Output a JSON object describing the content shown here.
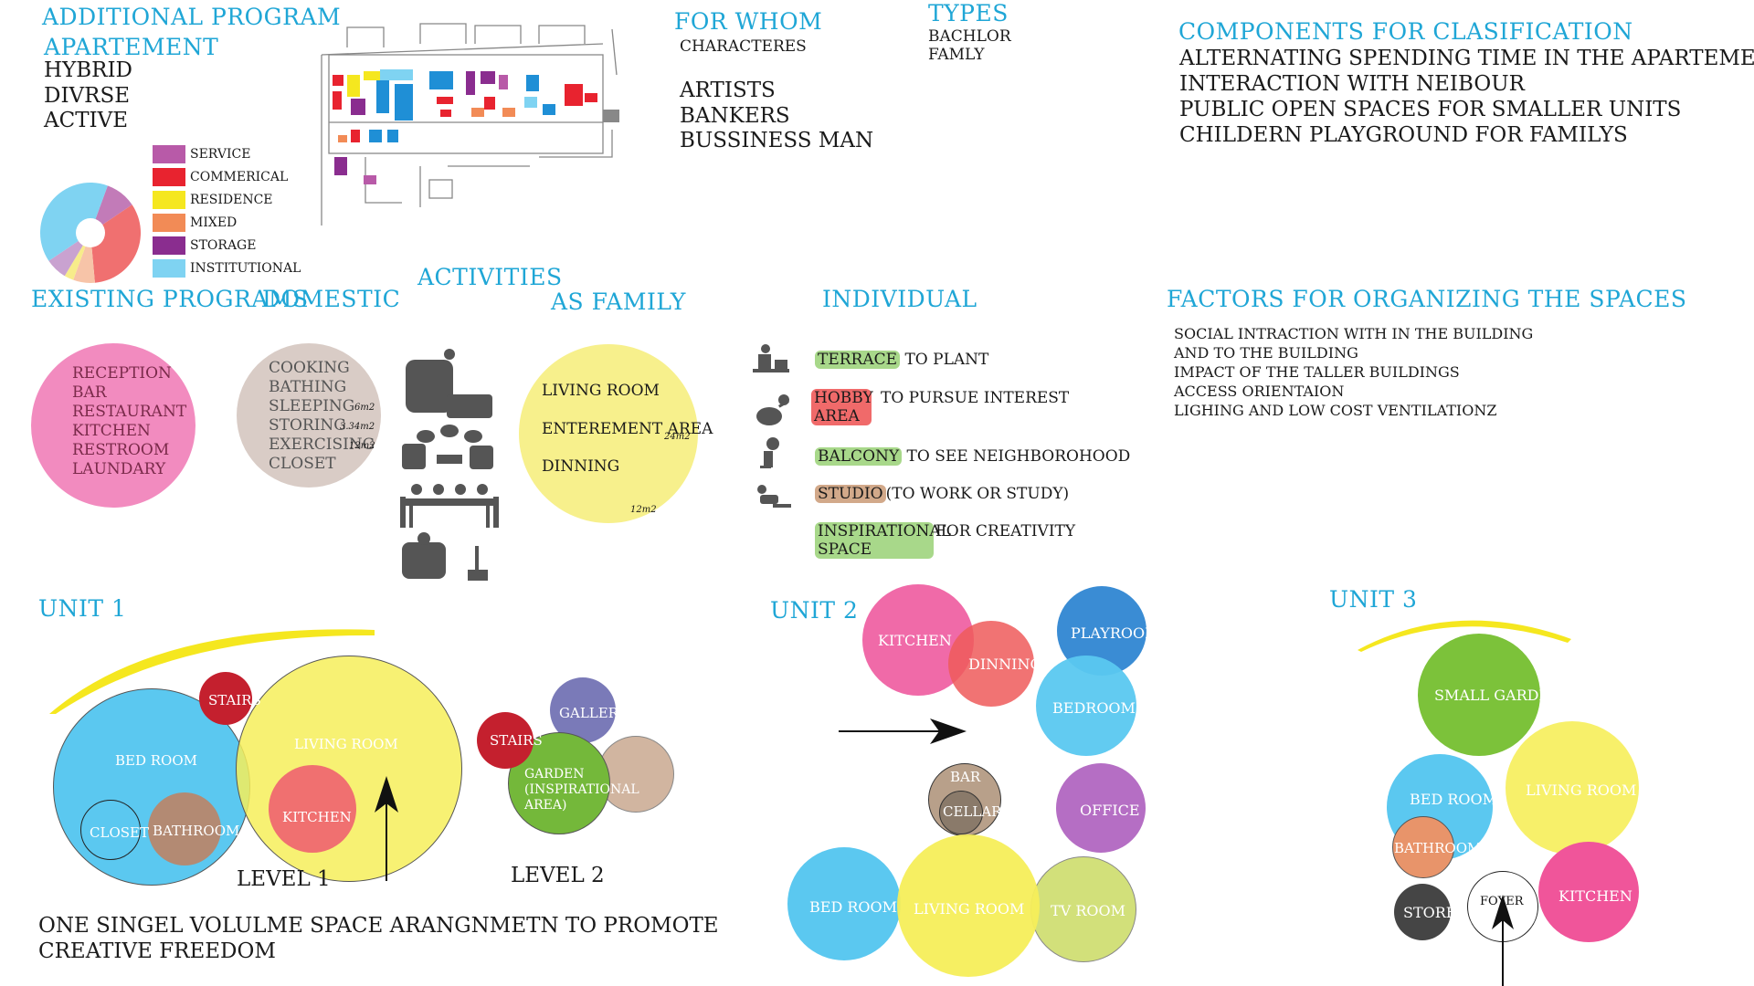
{
  "header": {
    "additional_program": "ADDITIONAL PROGRAM",
    "apartement": "APARTEMENT",
    "apt_items": [
      "HYBRID",
      "DIVRSE",
      "ACTIVE"
    ],
    "for_whom": "FOR WHOM",
    "characteres": "CHARACTERES",
    "characters": [
      "ARTISTS",
      "BANKERS",
      "BUSSINESS MAN"
    ],
    "types": "TYPES",
    "type_items": [
      "BACHLOR",
      "FAMLY"
    ],
    "components_title": "COMPONENTS FOR CLASIFICATION",
    "components": [
      "ALTERNATING SPENDING TIME IN THE APARTEMENT",
      "INTERACTION WITH NEIBOUR",
      "PUBLIC OPEN SPACES FOR SMALLER UNITS",
      "CHILDERN PLAYGROUND FOR FAMILYS"
    ]
  },
  "legend": [
    {
      "label": "SERVICE",
      "color": "#b85aa8"
    },
    {
      "label": "COMMERICAL",
      "color": "#e8232f"
    },
    {
      "label": "RESIDENCE",
      "color": "#f5e71f"
    },
    {
      "label": "MIXED",
      "color": "#f28b56"
    },
    {
      "label": "STORAGE",
      "color": "#8a2d8f"
    },
    {
      "label": "INSTITUTIONAL",
      "color": "#7fd3f2"
    }
  ],
  "donut": {
    "segments": [
      {
        "label": "SERVICE",
        "value": 10,
        "color": "#c27bb8"
      },
      {
        "label": "COMMERICAL",
        "value": 33,
        "color": "#f07070"
      },
      {
        "label": "MIXED",
        "value": 7,
        "color": "#f7c4a8"
      },
      {
        "label": "RESIDENCE",
        "value": 3,
        "color": "#f7ec8a"
      },
      {
        "label": "STORAGE",
        "value": 7,
        "color": "#c9a2d0"
      },
      {
        "label": "INSTITUTIONAL",
        "value": 40,
        "color": "#7fd3f2"
      }
    ]
  },
  "sections": {
    "existing_programs": "EXISTING PROGRAMS",
    "domestic": "DOMESTIC",
    "activities": "ACTIVITIES",
    "as_family": "AS FAMILY",
    "individual": "INDIVIDUAL",
    "factors_title": "FACTORS FOR ORGANIZING THE SPACES"
  },
  "existing": [
    "RECEPTION",
    "BAR",
    "RESTAURANT",
    "KITCHEN",
    "RESTROOM",
    "LAUNDARY"
  ],
  "domestic_items": [
    "COOKING",
    "BATHING",
    "SLEEPING",
    "STORING",
    "EXERCISING",
    "CLOSET"
  ],
  "domestic_notes": [
    "6m2",
    "3.34m2",
    "12m2"
  ],
  "family_items": [
    "LIVING ROOM",
    "ENTEREMENT AREA",
    "DINNING"
  ],
  "family_notes": [
    "24m2",
    "12m2"
  ],
  "individual_items": [
    {
      "tag": "TERRACE",
      "rest": "TO PLANT",
      "color": "#a8d88a"
    },
    {
      "tag": "HOBBY AREA",
      "rest": "TO PURSUE INTEREST",
      "color": "#f06a6a"
    },
    {
      "tag": "BALCONY",
      "rest": "TO SEE NEIGHBOROHOOD",
      "color": "#a8d88a"
    },
    {
      "tag": "STUDIO",
      "rest": "(TO WORK OR STUDY)",
      "color": "#d2a98a"
    },
    {
      "tag": "INSPIRATIONAL SPACE",
      "rest": "FOR CREATIVITY",
      "color": "#a8d88a"
    }
  ],
  "factors": [
    "SOCIAL INTRACTION WITH IN THE BUILDING",
    "AND TO THE BUILDING",
    "IMPACT OF THE TALLER BUILDINGS",
    "ACCESS ORIENTAION",
    "LIGHING AND LOW COST VENTILATIONZ"
  ],
  "unit1": {
    "title": "UNIT 1",
    "bed_room": "BED ROOM",
    "stairs": "STAIRS",
    "living_room": "LIVING ROOM",
    "kitchen": "KITCHEN",
    "closet": "CLOSET",
    "bathroom": "BATHROOM",
    "level1": "LEVEL 1",
    "stairs2": "STAIRS",
    "gallery": "GALLERY",
    "garden": "GARDEN (INSPIRATIONAL AREA)",
    "level2": "LEVEL 2",
    "caption_line1": "ONE SINGEL VOLULME SPACE ARANGNMETN TO PROMOTE",
    "caption_line2": "CREATIVE FREEDOM"
  },
  "unit2": {
    "title": "UNIT 2",
    "kitchen": "KITCHEN",
    "dinning": "DINNING",
    "playroom": "PLAYROOM",
    "bedroom": "BEDROOM",
    "bar": "BAR",
    "cellar": "CELLAR",
    "office": "OFFICE",
    "bed_room": "BED ROOM",
    "living_room": "LIVING ROOM",
    "tv_room": "TV ROOM"
  },
  "unit3": {
    "title": "UNIT 3",
    "small_garden": "SMALL GARDEN",
    "bed_room": "BED ROOM",
    "living_room": "LIVING ROOM",
    "bathroom": "BATHROOM",
    "store": "STORE",
    "foyer": "FOYER",
    "kitchen": "KITCHEN"
  }
}
